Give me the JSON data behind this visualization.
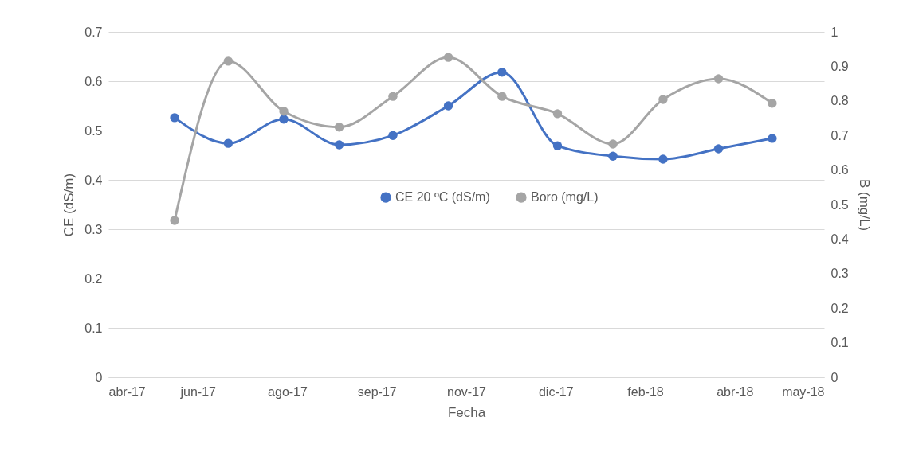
{
  "chart_data": {
    "type": "line",
    "xlabel": "Fecha",
    "ylabel": "CE (dS/m)",
    "y2label": "B (mg/L)",
    "x": [
      "2017-06-01",
      "2017-07-01",
      "2017-08-01",
      "2017-09-01",
      "2017-10-01",
      "2017-11-01",
      "2017-12-01",
      "2018-01-01",
      "2018-02-01",
      "2018-03-01",
      "2018-04-01",
      "2018-05-01"
    ],
    "series": [
      {
        "name": "CE 20 ºC (dS/m)",
        "color": "#4472c4",
        "values": [
          0.526,
          0.474,
          0.523,
          0.471,
          0.49,
          0.55,
          0.618,
          0.469,
          0.448,
          0.442,
          0.463,
          0.484
        ]
      },
      {
        "name": "Boro (mg/L)",
        "color": "#a5a5a5",
        "axis": "y2",
        "values": [
          0.454,
          0.915,
          0.77,
          0.724,
          0.813,
          0.926,
          0.813,
          0.763,
          0.675,
          0.804,
          0.864,
          0.793
        ]
      }
    ],
    "xlim": [
      "2017-04-25",
      "2018-05-30"
    ],
    "xticks": [
      {
        "value": "2017-04-25",
        "label": "abr-17"
      },
      {
        "value": "2017-06-14",
        "label": "jun-17"
      },
      {
        "value": "2017-08-03",
        "label": "ago-17"
      },
      {
        "value": "2017-09-22",
        "label": "sep-17"
      },
      {
        "value": "2017-11-11",
        "label": "nov-17"
      },
      {
        "value": "2017-12-31",
        "label": "dic-17"
      },
      {
        "value": "2018-02-19",
        "label": "feb-18"
      },
      {
        "value": "2018-04-10",
        "label": "abr-18"
      },
      {
        "value": "2018-05-30",
        "label": "may-18"
      }
    ],
    "ylim": [
      0,
      0.7
    ],
    "yticks": [
      0,
      0.1,
      0.2,
      0.3,
      0.4,
      0.5,
      0.6,
      0.7
    ],
    "y2lim": [
      0,
      1
    ],
    "y2ticks": [
      0,
      0.1,
      0.2,
      0.3,
      0.4,
      0.5,
      0.6,
      0.7,
      0.8,
      0.9,
      1
    ],
    "grid": "y",
    "legend": "center",
    "marker": "circle",
    "line_style": "solid"
  }
}
